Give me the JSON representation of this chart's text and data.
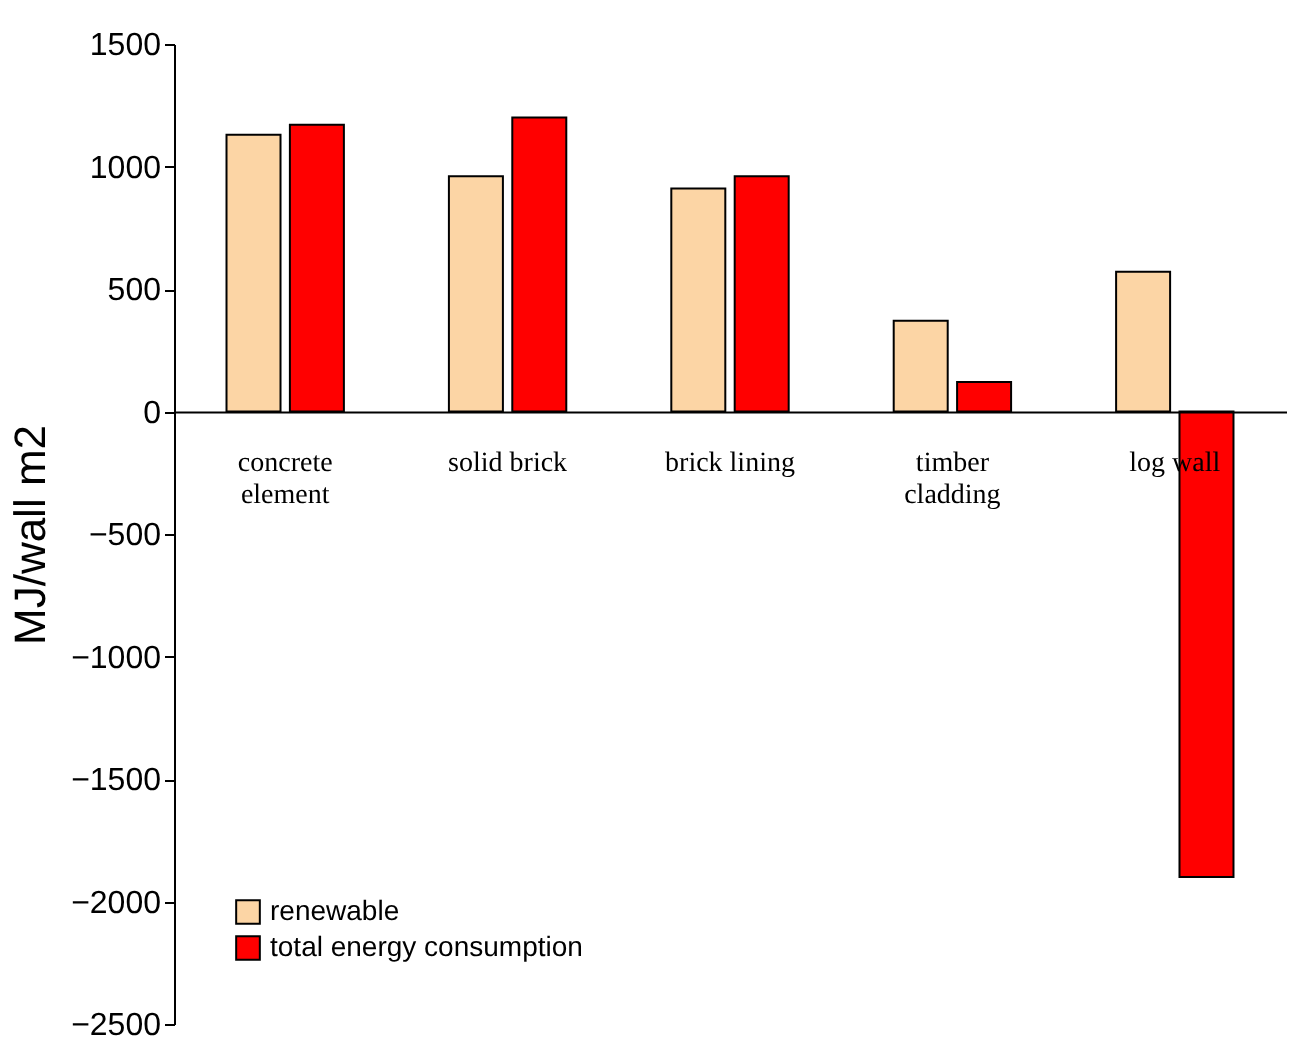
{
  "chart_data": {
    "type": "bar",
    "ylabel": "MJ/wall m2",
    "categories": [
      "concrete element",
      "solid brick",
      "brick lining",
      "timber cladding",
      "log wall"
    ],
    "series": [
      {
        "name": "renewable",
        "color": "#fcd5a5",
        "values": [
          1130,
          960,
          910,
          370,
          570
        ]
      },
      {
        "name": "total energy consumption",
        "color": "#ff0000",
        "values": [
          1170,
          1200,
          960,
          120,
          -1900
        ]
      }
    ],
    "ylim": [
      -2500,
      1500
    ],
    "yticks": [
      -2500,
      -2000,
      -1500,
      -1000,
      -500,
      0,
      500,
      1000,
      1500
    ],
    "legend": "bottom left"
  }
}
